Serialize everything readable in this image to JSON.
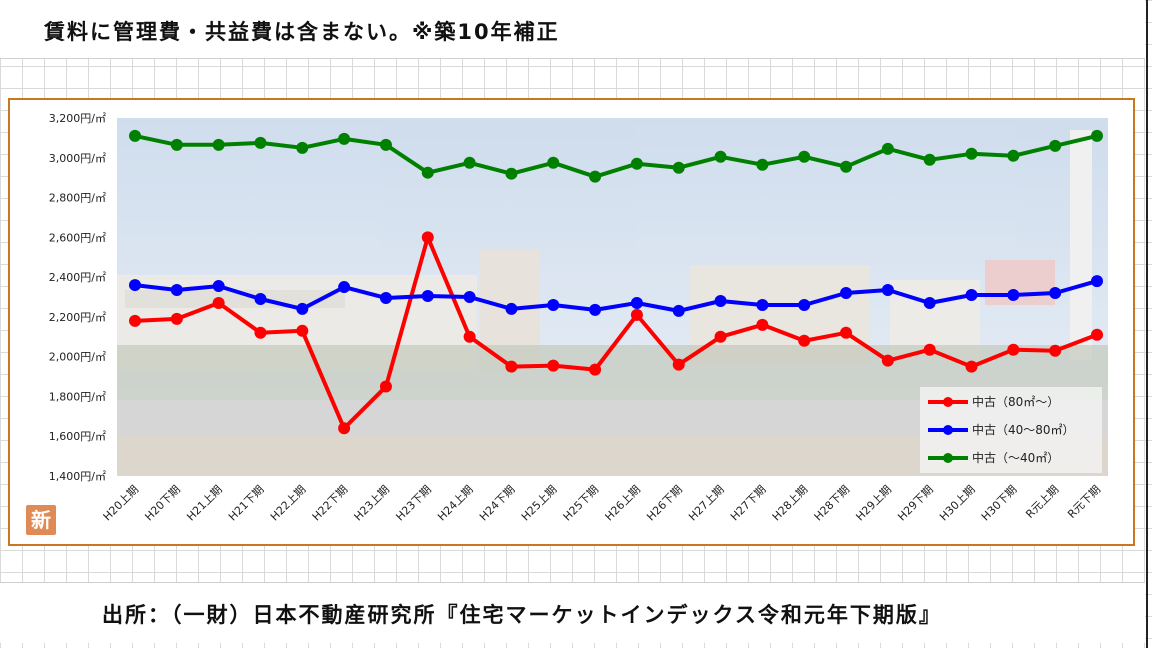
{
  "header": {
    "note": "賃料に管理費・共益費は含まない。※築10年補正"
  },
  "footer": {
    "source": "出所：（一財）日本不動産研究所『住宅マーケットインデックス令和元年下期版』"
  },
  "badge": {
    "label": "新",
    "color": "#e08a55"
  },
  "chart_data": {
    "type": "line",
    "title": "",
    "xlabel": "",
    "ylabel": "",
    "categories": [
      "H20上期",
      "H20下期",
      "H21上期",
      "H21下期",
      "H22上期",
      "H22下期",
      "H23上期",
      "H23下期",
      "H24上期",
      "H24下期",
      "H25上期",
      "H25下期",
      "H26上期",
      "H26下期",
      "H27上期",
      "H27下期",
      "H28上期",
      "H28下期",
      "H29上期",
      "H29下期",
      "H30上期",
      "H30下期",
      "R元上期",
      "R元下期"
    ],
    "y_ticks": [
      "3,200円/㎡",
      "3,000円/㎡",
      "2,800円/㎡",
      "2,600円/㎡",
      "2,400円/㎡",
      "2,200円/㎡",
      "2,000円/㎡",
      "1,800円/㎡",
      "1,600円/㎡",
      "1,400円/㎡"
    ],
    "ylim": [
      1400,
      3200
    ],
    "grid": false,
    "legend_position": "bottom-right",
    "series": [
      {
        "name": "中古（80㎡～）",
        "color": "#ff0000",
        "values": [
          2180,
          2190,
          2270,
          2120,
          2130,
          1640,
          1850,
          2600,
          2100,
          1950,
          1955,
          1935,
          2210,
          1960,
          2100,
          2160,
          2080,
          2120,
          1980,
          2035,
          1950,
          2035,
          2030,
          2110
        ]
      },
      {
        "name": "中古（40～80㎡）",
        "color": "#0000ff",
        "values": [
          2360,
          2335,
          2355,
          2290,
          2240,
          2350,
          2295,
          2305,
          2300,
          2240,
          2260,
          2235,
          2270,
          2230,
          2280,
          2260,
          2260,
          2320,
          2335,
          2270,
          2310,
          2310,
          2320,
          2380
        ]
      },
      {
        "name": "中古（～40㎡）",
        "color": "#008000",
        "values": [
          3110,
          3065,
          3065,
          3075,
          3050,
          3095,
          3065,
          2925,
          2975,
          2920,
          2975,
          2905,
          2970,
          2950,
          3005,
          2965,
          3005,
          2955,
          3045,
          2990,
          3020,
          3010,
          3060,
          3110
        ]
      }
    ]
  }
}
